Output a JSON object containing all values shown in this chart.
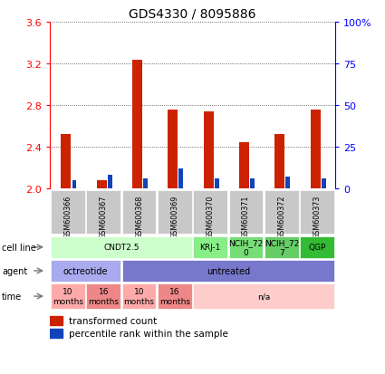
{
  "title": "GDS4330 / 8095886",
  "samples": [
    "GSM600366",
    "GSM600367",
    "GSM600368",
    "GSM600369",
    "GSM600370",
    "GSM600371",
    "GSM600372",
    "GSM600373"
  ],
  "transformed_counts": [
    2.52,
    2.08,
    3.23,
    2.76,
    2.74,
    2.44,
    2.52,
    2.76
  ],
  "percentile_ranks_pct": [
    5,
    8,
    6,
    12,
    6,
    6,
    7,
    6
  ],
  "ylim": [
    2.0,
    3.6
  ],
  "y_ticks": [
    2.0,
    2.4,
    2.8,
    3.2,
    3.6
  ],
  "right_ticks": [
    0,
    25,
    50,
    75,
    100
  ],
  "right_tick_labels": [
    "0",
    "25",
    "50",
    "75",
    "100%"
  ],
  "bar_color_red": "#cc2200",
  "bar_color_blue": "#1144bb",
  "grid_color": "#444444",
  "sample_bg": "#c8c8c8",
  "cell_line_groups": [
    {
      "label": "CNDT2.5",
      "span": [
        0,
        4
      ],
      "color": "#ccffcc"
    },
    {
      "label": "KRJ-1",
      "span": [
        4,
        5
      ],
      "color": "#88ee88"
    },
    {
      "label": "NCIH_72\n0",
      "span": [
        5,
        6
      ],
      "color": "#77dd77"
    },
    {
      "label": "NCIH_72\n7",
      "span": [
        6,
        7
      ],
      "color": "#66cc66"
    },
    {
      "label": "QGP",
      "span": [
        7,
        8
      ],
      "color": "#33bb33"
    }
  ],
  "agent_groups": [
    {
      "label": "octreotide",
      "span": [
        0,
        2
      ],
      "color": "#aaaaee"
    },
    {
      "label": "untreated",
      "span": [
        2,
        8
      ],
      "color": "#7777cc"
    }
  ],
  "time_groups": [
    {
      "label": "10\nmonths",
      "span": [
        0,
        1
      ],
      "color": "#ffaaaa"
    },
    {
      "label": "16\nmonths",
      "span": [
        1,
        2
      ],
      "color": "#ee8888"
    },
    {
      "label": "10\nmonths",
      "span": [
        2,
        3
      ],
      "color": "#ffaaaa"
    },
    {
      "label": "16\nmonths",
      "span": [
        3,
        4
      ],
      "color": "#ee8888"
    },
    {
      "label": "n/a",
      "span": [
        4,
        8
      ],
      "color": "#ffcccc"
    }
  ],
  "row_labels": [
    "cell line",
    "agent",
    "time"
  ],
  "legend_red_label": "transformed count",
  "legend_blue_label": "percentile rank within the sample",
  "fig_width": 4.25,
  "fig_height": 4.14,
  "dpi": 100
}
